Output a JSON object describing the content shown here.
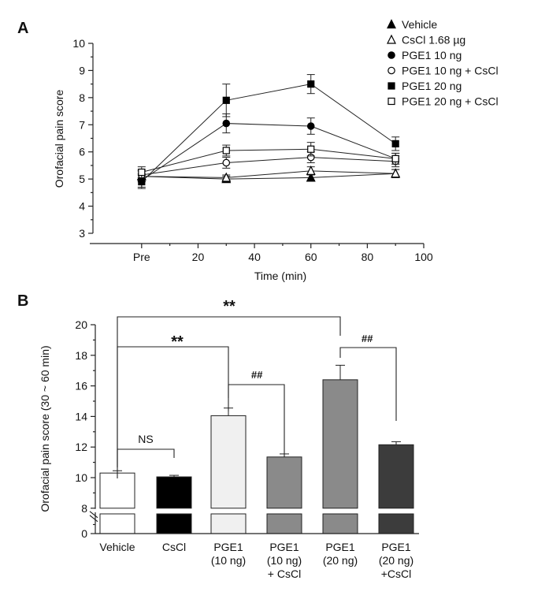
{
  "chart_data": [
    {
      "panel": "A",
      "type": "line",
      "xlabel": "Time (min)",
      "ylabel": "Orofacial pain score",
      "ylim": [
        3,
        10
      ],
      "yticks": [
        "3",
        "4",
        "5",
        "6",
        "7",
        "8",
        "9",
        "10"
      ],
      "xticks": [
        "Pre",
        "20",
        "40",
        "60",
        "80",
        "100"
      ],
      "x": [
        0,
        30,
        60,
        90
      ],
      "series": [
        {
          "name": "Vehicle",
          "marker": "triangle",
          "filled": true,
          "values": [
            5.1,
            5.0,
            5.05,
            5.2
          ],
          "errors": [
            0.2,
            0.1,
            0.1,
            0.15
          ]
        },
        {
          "name": "CsCl 1.68 µg",
          "marker": "triangle",
          "filled": false,
          "values": [
            5.1,
            5.05,
            5.3,
            5.2
          ],
          "errors": [
            0.2,
            0.1,
            0.15,
            0.15
          ]
        },
        {
          "name": "PGE1 10 ng",
          "marker": "circle",
          "filled": true,
          "values": [
            4.95,
            7.05,
            6.95,
            5.75
          ],
          "errors": [
            0.25,
            0.35,
            0.3,
            0.2
          ]
        },
        {
          "name": "PGE1 10 ng + CsCl",
          "marker": "circle",
          "filled": false,
          "values": [
            5.15,
            5.6,
            5.8,
            5.65
          ],
          "errors": [
            0.2,
            0.2,
            0.2,
            0.2
          ]
        },
        {
          "name": "PGE1 20 ng",
          "marker": "square",
          "filled": true,
          "values": [
            4.9,
            7.9,
            8.5,
            6.3
          ],
          "errors": [
            0.25,
            0.6,
            0.35,
            0.25
          ]
        },
        {
          "name": "PGE1 20 ng + CsCl",
          "marker": "square",
          "filled": false,
          "values": [
            5.25,
            6.05,
            6.1,
            5.75
          ],
          "errors": [
            0.2,
            0.2,
            0.25,
            0.2
          ]
        }
      ]
    },
    {
      "panel": "B",
      "type": "bar",
      "ylabel": "Orofacial pain score (30 ~ 60 min)",
      "ylim": [
        0,
        20
      ],
      "axis_break": [
        0,
        8
      ],
      "yticks": [
        "0",
        "8",
        "10",
        "12",
        "14",
        "16",
        "18",
        "20"
      ],
      "categories": [
        [
          "Vehicle"
        ],
        [
          "CsCl"
        ],
        [
          "PGE1",
          "(10 ng)"
        ],
        [
          "PGE1",
          "(10 ng)",
          "+ CsCl"
        ],
        [
          "PGE1",
          "(20 ng)"
        ],
        [
          "PGE1",
          "(20 ng)",
          "+CsCl"
        ]
      ],
      "values": [
        10.3,
        10.05,
        14.05,
        11.35,
        16.4,
        12.15
      ],
      "errors": [
        0.15,
        0.1,
        0.5,
        0.2,
        0.95,
        0.2
      ],
      "colors": [
        "#ffffff",
        "#000000",
        "#f0f0f0",
        "#8a8a8a",
        "#8a8a8a",
        "#3c3c3c"
      ],
      "significance": [
        {
          "label": "NS",
          "from": 0,
          "to": 1
        },
        {
          "label": "**",
          "from": 0,
          "to": 2
        },
        {
          "label": "**",
          "from": 0,
          "to": 4
        },
        {
          "label": "##",
          "from": 2,
          "to": 3
        },
        {
          "label": "##",
          "from": 4,
          "to": 5
        }
      ]
    }
  ]
}
